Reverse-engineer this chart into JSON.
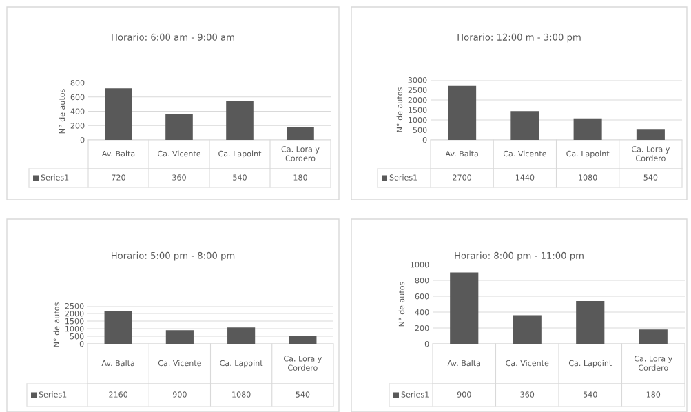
{
  "chart_data": [
    {
      "type": "bar",
      "title": "Horario: 6:00 am - 9:00 am",
      "ylabel": "N° de autos",
      "categories": [
        "Av. Balta",
        "Ca. Vicente",
        "Ca. Lapoint",
        "Ca. Lora y Cordero"
      ],
      "series": [
        {
          "name": "Series1",
          "color": "#595959",
          "values": [
            720,
            360,
            540,
            180
          ]
        }
      ],
      "ylim": [
        0,
        800
      ],
      "yticks": [
        0,
        200,
        400,
        600,
        800
      ],
      "grid": "y",
      "legend": "bottom",
      "data_labels": true
    },
    {
      "type": "bar",
      "title": "Horario: 12:00 m - 3:00 pm",
      "ylabel": "N° de autos",
      "categories": [
        "Av. Balta",
        "Ca. Vicente",
        "Ca. Lapoint",
        "Ca. Lora y Cordero"
      ],
      "series": [
        {
          "name": "Series1",
          "color": "#595959",
          "values": [
            2700,
            1440,
            1080,
            540
          ]
        }
      ],
      "ylim": [
        0,
        3000
      ],
      "yticks": [
        0,
        500,
        1000,
        1500,
        2000,
        2500,
        3000
      ],
      "grid": "y",
      "legend": "bottom",
      "data_labels": true
    },
    {
      "type": "bar",
      "title": "Horario: 5:00 pm - 8:00 pm",
      "ylabel": "N° de autos",
      "categories": [
        "Av. Balta",
        "Ca. Vicente",
        "Ca. Lapoint",
        "Ca. Lora y Cordero"
      ],
      "series": [
        {
          "name": "Series1",
          "color": "#595959",
          "values": [
            2160,
            900,
            1080,
            540
          ]
        }
      ],
      "ylim": [
        0,
        2500
      ],
      "yticks": [
        0,
        500,
        1000,
        1500,
        2000,
        2500
      ],
      "grid": "y",
      "legend": "bottom",
      "data_labels": true
    },
    {
      "type": "bar",
      "title": "Horario: 8:00 pm - 11:00 pm",
      "ylabel": "N° de autos",
      "categories": [
        "Av. Balta",
        "Ca. Vicente",
        "Ca. Lapoint",
        "Ca. Lora y Cordero"
      ],
      "series": [
        {
          "name": "Series1",
          "color": "#595959",
          "values": [
            900,
            360,
            540,
            180
          ]
        }
      ],
      "ylim": [
        0,
        1000
      ],
      "yticks": [
        0,
        200,
        400,
        600,
        800,
        1000
      ],
      "grid": "y",
      "legend": "bottom",
      "data_labels": true
    }
  ]
}
